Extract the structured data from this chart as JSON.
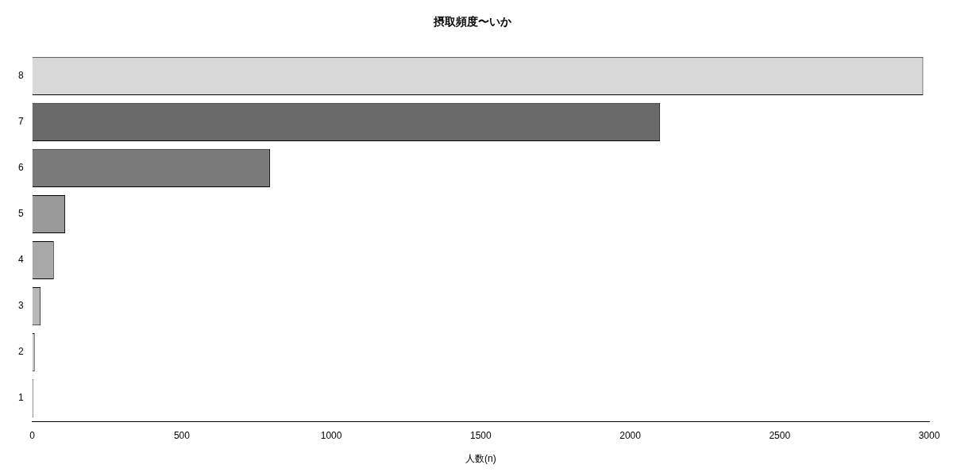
{
  "chart_data": {
    "type": "bar",
    "orientation": "horizontal",
    "title": "摂取頻度〜いか",
    "xlabel": "人数(n)",
    "categories": [
      "8",
      "7",
      "6",
      "5",
      "4",
      "3",
      "2",
      "1"
    ],
    "values": [
      2980,
      2100,
      795,
      110,
      72,
      28,
      8,
      3
    ],
    "colors": [
      "#d8d8d8",
      "#6a6a6a",
      "#7a7a7a",
      "#9a9a9a",
      "#a8a8a8",
      "#b8b8b8",
      "#c8c8c8",
      "#d0d0d0"
    ],
    "xlim": [
      0,
      3000
    ],
    "xticks": [
      0,
      500,
      1000,
      1500,
      2000,
      2500,
      3000
    ],
    "grid": false,
    "legend": false
  }
}
